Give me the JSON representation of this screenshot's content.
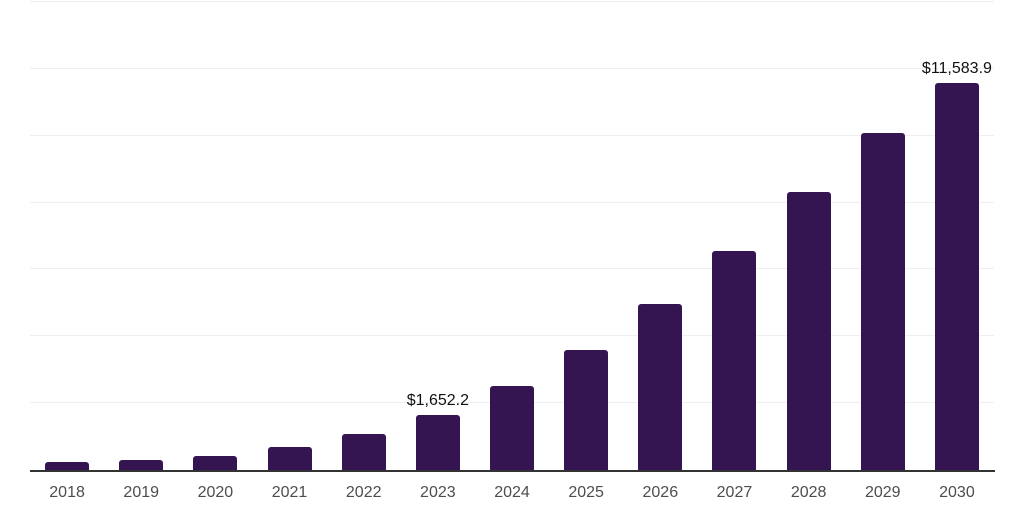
{
  "chart_data": {
    "type": "bar",
    "title": "",
    "xlabel": "",
    "ylabel": "",
    "categories": [
      "2018",
      "2019",
      "2020",
      "2021",
      "2022",
      "2023",
      "2024",
      "2025",
      "2026",
      "2027",
      "2028",
      "2029",
      "2030"
    ],
    "values": [
      230,
      300,
      420,
      700,
      1090,
      1652.2,
      2520,
      3600,
      4970,
      6550,
      8330,
      10080,
      11583.9
    ],
    "data_labels": [
      {
        "category": "2023",
        "text": "$1,652.2"
      },
      {
        "category": "2030",
        "text": "$11,583.9"
      }
    ],
    "ylim": [
      0,
      14000
    ],
    "gridline_step": 2000,
    "grid": true,
    "y_axis_tick_labels_visible": false,
    "legend_position": "none",
    "colors": {
      "bar": "#341551",
      "axis_line": "#333333",
      "gridline": "#efefef",
      "tick_label": "#4d4d4d",
      "data_label": "#111111",
      "background": "#ffffff"
    }
  }
}
